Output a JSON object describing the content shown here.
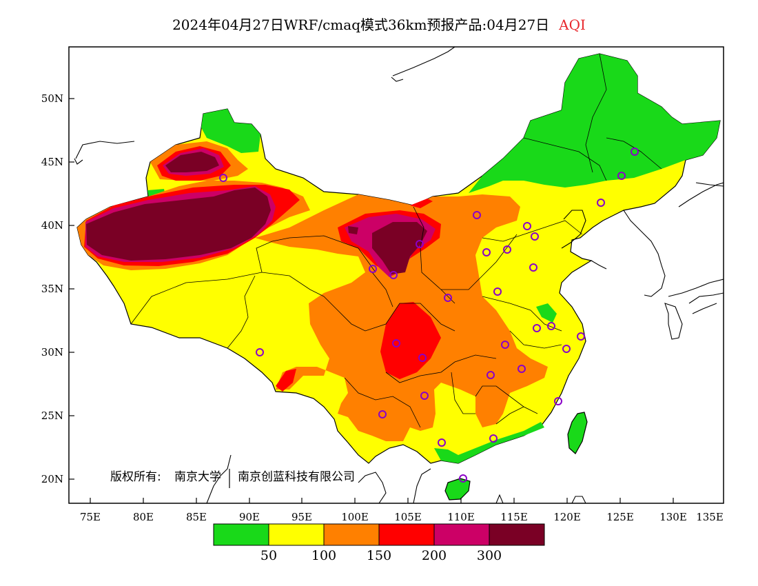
{
  "title": {
    "main": "2024年04月27日WRF/cmaq模式36km预报产品:04月27日",
    "variable": "AQI"
  },
  "copyright": {
    "prefix": "版权所有:",
    "owner1": "南京大学",
    "owner2": "南京创蓝科技有限公司"
  },
  "axes": {
    "lat_labels": [
      "50N",
      "45N",
      "40N",
      "35N",
      "30N",
      "25N",
      "20N"
    ],
    "lon_labels": [
      "75E",
      "80E",
      "85E",
      "90E",
      "95E",
      "100E",
      "105E",
      "110E",
      "115E",
      "120E",
      "125E",
      "130E",
      "135E"
    ]
  },
  "colorbar": {
    "colors": [
      "#19d919",
      "#ffff00",
      "#ff8000",
      "#ff0000",
      "#cc0066",
      "#7a0025"
    ],
    "labels": [
      "50",
      "100",
      "150",
      "200",
      "300"
    ]
  },
  "map_colors": {
    "ocean": "#ffffff",
    "boundary": "#000000",
    "station_marker": "#8a00c8"
  }
}
